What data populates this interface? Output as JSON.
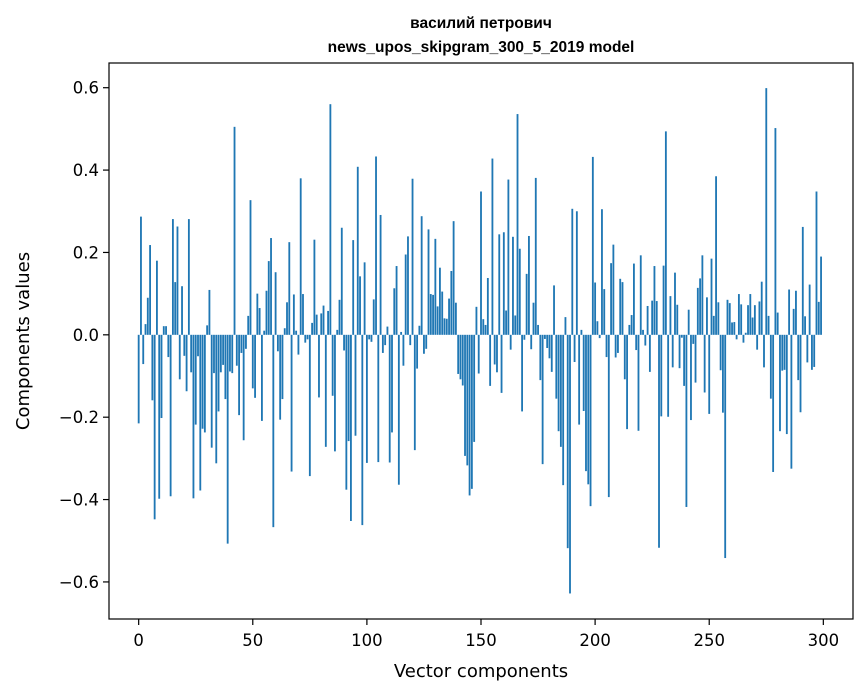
{
  "chart_data": {
    "type": "bar",
    "title": "василий петрович",
    "subtitle": "news_upos_skipgram_300_5_2019 model",
    "xlabel": "Vector components",
    "ylabel": "Components values",
    "xlim": [
      -13,
      313
    ],
    "ylim": [
      -0.69,
      0.66
    ],
    "xticks": [
      0,
      50,
      100,
      150,
      200,
      250,
      300
    ],
    "xtick_labels": [
      "0",
      "50",
      "100",
      "150",
      "200",
      "250",
      "300"
    ],
    "yticks": [
      -0.6,
      -0.4,
      -0.2,
      0.0,
      0.2,
      0.4,
      0.6
    ],
    "ytick_labels": [
      "−0.6",
      "−0.4",
      "−0.2",
      "0.0",
      "0.2",
      "0.4",
      "0.6"
    ],
    "bar_color": "#1f77b4",
    "grid": false,
    "values": [
      -0.215,
      0.287,
      -0.071,
      0.026,
      0.09,
      0.218,
      -0.159,
      -0.448,
      0.18,
      -0.398,
      -0.202,
      0.021,
      0.021,
      -0.054,
      -0.392,
      0.281,
      0.128,
      0.263,
      -0.108,
      0.118,
      -0.051,
      -0.137,
      0.281,
      -0.091,
      -0.397,
      -0.218,
      -0.052,
      -0.378,
      -0.228,
      -0.237,
      0.023,
      0.109,
      -0.274,
      -0.093,
      -0.312,
      -0.186,
      -0.091,
      -0.073,
      -0.156,
      -0.507,
      -0.089,
      -0.093,
      0.505,
      -0.075,
      -0.195,
      -0.044,
      -0.256,
      -0.034,
      0.046,
      0.327,
      -0.13,
      -0.153,
      0.1,
      0.065,
      -0.209,
      0.01,
      0.107,
      0.179,
      0.235,
      -0.467,
      0.152,
      -0.04,
      -0.206,
      -0.156,
      0.016,
      0.079,
      0.225,
      -0.332,
      0.098,
      0.01,
      -0.048,
      0.38,
      0.099,
      -0.019,
      -0.011,
      -0.343,
      0.029,
      0.231,
      0.049,
      -0.152,
      0.052,
      0.071,
      -0.272,
      0.058,
      0.56,
      -0.148,
      -0.283,
      0.012,
      0.085,
      0.26,
      -0.038,
      -0.376,
      -0.258,
      -0.452,
      0.23,
      -0.245,
      0.408,
      0.142,
      -0.462,
      0.176,
      -0.311,
      -0.011,
      -0.017,
      0.086,
      0.433,
      -0.309,
      0.291,
      -0.044,
      -0.025,
      0.02,
      -0.31,
      -0.237,
      0.113,
      0.167,
      -0.364,
      0.007,
      -0.075,
      0.195,
      0.239,
      -0.025,
      0.379,
      -0.28,
      -0.082,
      0.022,
      0.288,
      -0.046,
      -0.034,
      0.256,
      0.099,
      0.097,
      0.233,
      0.069,
      0.163,
      0.105,
      0.04,
      0.039,
      0.088,
      0.155,
      0.276,
      0.078,
      -0.095,
      -0.108,
      -0.123,
      -0.294,
      -0.317,
      -0.39,
      -0.374,
      -0.26,
      0.068,
      -0.094,
      0.348,
      0.038,
      0.024,
      0.138,
      -0.124,
      0.428,
      -0.072,
      -0.091,
      0.244,
      -0.141,
      0.249,
      0.059,
      0.377,
      -0.036,
      0.238,
      0.047,
      0.536,
      0.209,
      -0.186,
      -0.012,
      0.148,
      0.24,
      -0.035,
      0.078,
      0.381,
      0.024,
      -0.11,
      -0.314,
      -0.01,
      -0.032,
      -0.057,
      -0.09,
      0.12,
      -0.155,
      -0.234,
      -0.272,
      -0.365,
      0.043,
      -0.518,
      -0.628,
      0.306,
      -0.066,
      0.3,
      -0.218,
      0.012,
      -0.185,
      -0.331,
      -0.363,
      -0.416,
      0.432,
      0.127,
      0.033,
      -0.008,
      0.305,
      0.111,
      -0.054,
      -0.394,
      0.174,
      0.219,
      -0.055,
      -0.044,
      0.136,
      0.128,
      -0.108,
      -0.229,
      0.024,
      0.048,
      0.173,
      -0.037,
      -0.233,
      0.193,
      0.012,
      -0.026,
      0.07,
      -0.09,
      0.083,
      0.167,
      0.082,
      -0.517,
      -0.198,
      0.168,
      0.494,
      -0.199,
      0.094,
      -0.079,
      0.151,
      0.073,
      -0.081,
      -0.007,
      -0.124,
      -0.418,
      0.061,
      -0.207,
      -0.022,
      -0.116,
      0.114,
      0.137,
      0.193,
      -0.14,
      0.091,
      -0.192,
      0.185,
      0.046,
      0.385,
      0.079,
      -0.086,
      -0.189,
      -0.542,
      0.085,
      0.077,
      0.03,
      0.031,
      -0.011,
      0.099,
      0.074,
      -0.019,
      0.005,
      0.072,
      0.099,
      0.042,
      0.072,
      -0.036,
      0.081,
      0.129,
      -0.079,
      0.599,
      0.046,
      -0.155,
      -0.333,
      0.502,
      0.054,
      -0.234,
      -0.087,
      -0.085,
      -0.241,
      0.11,
      -0.325,
      0.063,
      0.107,
      -0.11,
      -0.188,
      0.262,
      0.045,
      -0.067,
      0.122,
      -0.085,
      -0.078,
      0.348,
      0.08,
      0.19
    ]
  }
}
